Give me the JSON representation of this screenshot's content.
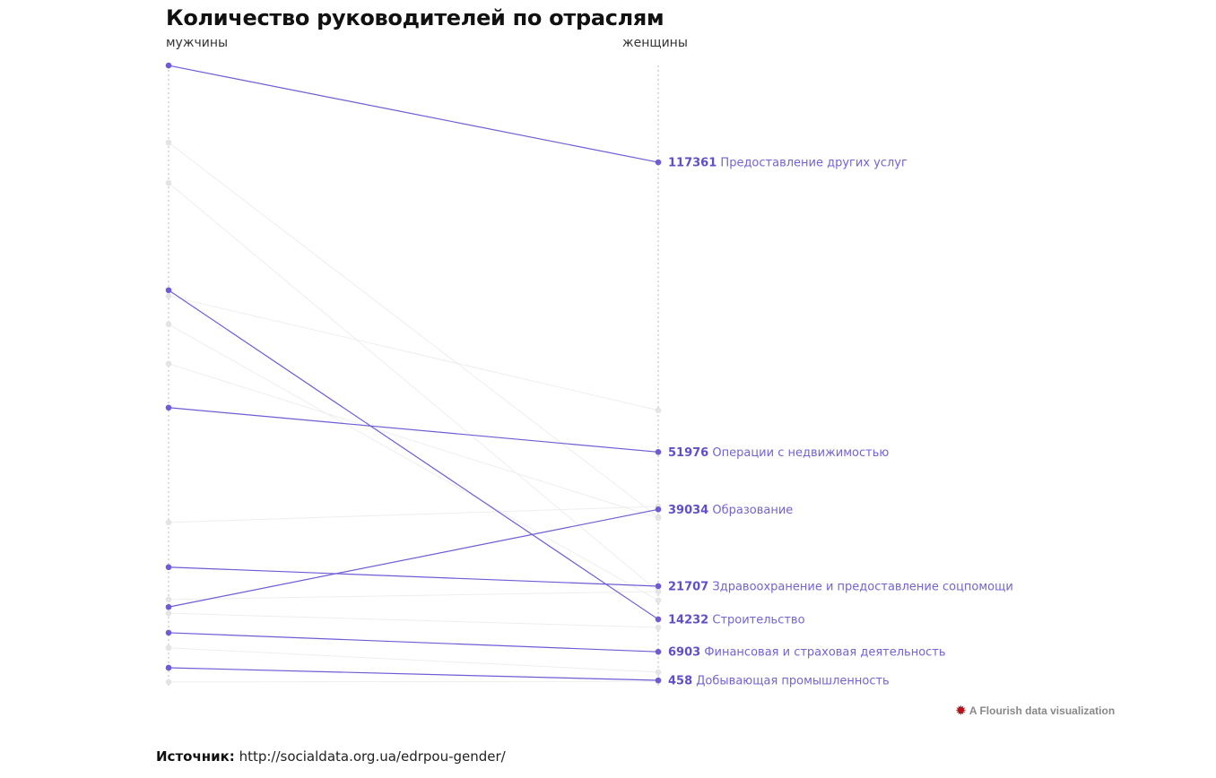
{
  "chart_data": {
    "type": "slope",
    "title": "Количество руководителей по отраслям",
    "left_label": "мужчины",
    "right_label": "женщины",
    "highlight_color": "#6f5bd6",
    "muted_color": "#e4e4e4",
    "series": [
      {
        "name": "Предоставление других услуг",
        "left": 139200,
        "right": 117361,
        "highlight": true
      },
      {
        "name": "Операции с недвижимостью",
        "left": 62000,
        "right": 51976,
        "highlight": true
      },
      {
        "name": "Образование",
        "left": 17000,
        "right": 39034,
        "highlight": true
      },
      {
        "name": "Здравоохранение и предоставление соцпомощи",
        "left": 26000,
        "right": 21707,
        "highlight": true
      },
      {
        "name": "Строительство",
        "left": 88500,
        "right": 14232,
        "highlight": true
      },
      {
        "name": "Финансовая и страховая деятельность",
        "left": 11200,
        "right": 6903,
        "highlight": true
      },
      {
        "name": "Добывающая промышленность",
        "left": 3300,
        "right": 458,
        "highlight": true
      },
      {
        "name": "",
        "left": 121800,
        "right": 37300,
        "highlight": false
      },
      {
        "name": "",
        "left": 112700,
        "right": 20500,
        "highlight": false
      },
      {
        "name": "",
        "left": 87200,
        "right": 61400,
        "highlight": false
      },
      {
        "name": "",
        "left": 80800,
        "right": 18500,
        "highlight": false
      },
      {
        "name": "",
        "left": 71900,
        "right": 37100,
        "highlight": false
      },
      {
        "name": "",
        "left": 36100,
        "right": 39700,
        "highlight": false
      },
      {
        "name": "",
        "left": 18700,
        "right": 20500,
        "highlight": false
      },
      {
        "name": "",
        "left": 15600,
        "right": 12400,
        "highlight": false
      },
      {
        "name": "",
        "left": 7800,
        "right": 2300,
        "highlight": false
      },
      {
        "name": "",
        "left": 100,
        "right": 200,
        "highlight": false
      }
    ]
  },
  "credit": "A Flourish data visualization",
  "source": {
    "label": "Источник:",
    "url": "http://socialdata.org.ua/edrpou-gender/"
  }
}
